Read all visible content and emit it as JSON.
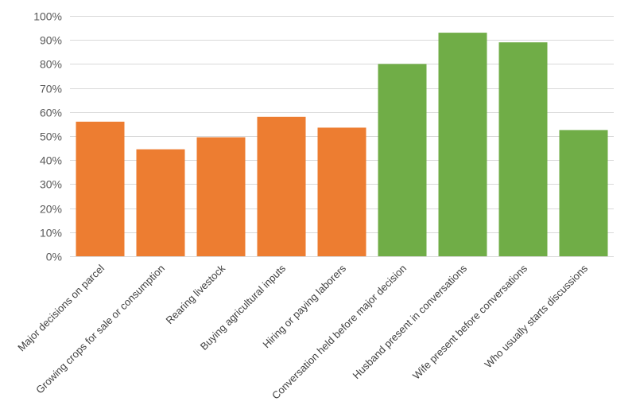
{
  "chart_data": {
    "type": "bar",
    "title": "",
    "xlabel": "",
    "ylabel": "",
    "ylim": [
      0,
      100
    ],
    "yticks": [
      "0%",
      "10%",
      "20%",
      "30%",
      "40%",
      "50%",
      "60%",
      "70%",
      "80%",
      "90%",
      "100%"
    ],
    "grid": true,
    "legend": "none",
    "categories": [
      "Major decisions on parcel",
      "Growing crops for sale or consumption",
      "Rearing livestock",
      "Buying agricultural inputs",
      "Hiring or paying laborers",
      "Conversation held before major decision",
      "Husband present in conversations",
      "Wife present before conversations",
      "Who usually starts discussions"
    ],
    "values": [
      56,
      44.5,
      49.5,
      58,
      53.5,
      80,
      93,
      89,
      52.5
    ],
    "bar_colors": [
      "#ed7d31",
      "#ed7d31",
      "#ed7d31",
      "#ed7d31",
      "#ed7d31",
      "#70ad47",
      "#70ad47",
      "#70ad47",
      "#70ad47"
    ]
  }
}
